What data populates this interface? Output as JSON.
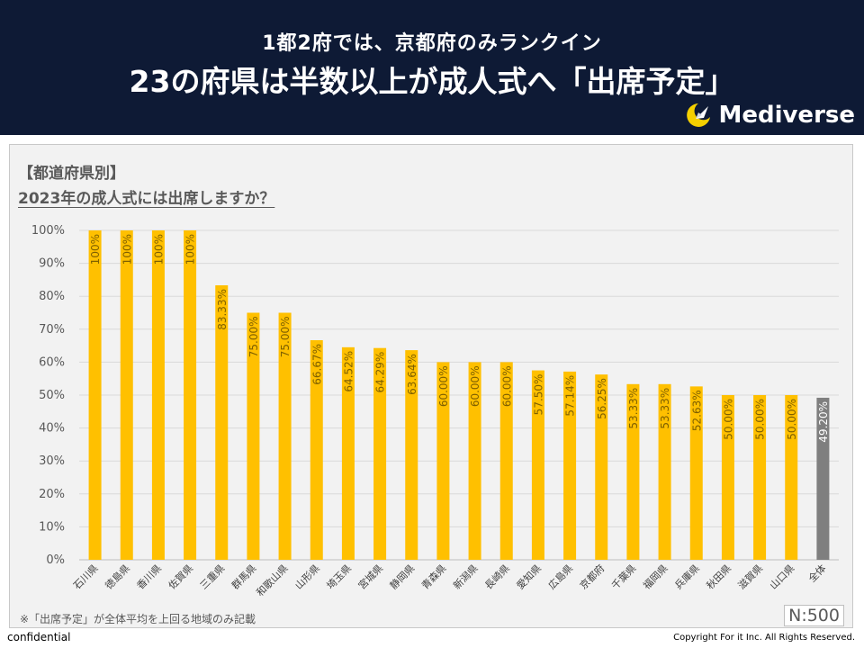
{
  "header": {
    "subtitle": "1都2府では、京都府のみランクイン",
    "title": "23の府県は半数以上が成人式へ「出席予定」"
  },
  "brand": {
    "name": "Mediverse"
  },
  "chart_title": {
    "line1": "【都道府県別】",
    "line2": "2023年の成人式には出席しますか？"
  },
  "footnote": "※「出席予定」が全体平均を上回る地域のみ記載",
  "n_label": "N:500",
  "confidential": "confidential",
  "copyright": "Copyright For it Inc. All Rights Reserved.",
  "chart_data": {
    "type": "bar",
    "categories": [
      "石川県",
      "徳島県",
      "香川県",
      "佐賀県",
      "三重県",
      "群馬県",
      "和歌山県",
      "山形県",
      "埼玉県",
      "宮城県",
      "静岡県",
      "青森県",
      "新潟県",
      "長崎県",
      "愛知県",
      "広島県",
      "京都府",
      "千葉県",
      "福岡県",
      "兵庫県",
      "秋田県",
      "滋賀県",
      "山口県",
      "全体"
    ],
    "values": [
      100,
      100,
      100,
      100,
      83.33,
      75.0,
      75.0,
      66.67,
      64.52,
      64.29,
      63.64,
      60.0,
      60.0,
      60.0,
      57.5,
      57.14,
      56.25,
      53.33,
      53.33,
      52.63,
      50.0,
      50.0,
      50.0,
      49.2
    ],
    "data_labels": [
      "100%",
      "100%",
      "100%",
      "100%",
      "83.33%",
      "75.00%",
      "75.00%",
      "66.67%",
      "64.52%",
      "64.29%",
      "63.64%",
      "60.00%",
      "60.00%",
      "60.00%",
      "57.50%",
      "57.14%",
      "56.25%",
      "53.33%",
      "53.33%",
      "52.63%",
      "50.00%",
      "50.00%",
      "50.00%",
      "49.20%"
    ],
    "y_ticks": [
      "0%",
      "10%",
      "20%",
      "30%",
      "40%",
      "50%",
      "60%",
      "70%",
      "80%",
      "90%",
      "100%"
    ],
    "ylim": [
      0,
      100
    ],
    "grid": true,
    "colors": {
      "bar": "#ffc000",
      "total_bar": "#7f7f7f",
      "label": "#7f6000",
      "total_label": "#ffffff"
    }
  }
}
